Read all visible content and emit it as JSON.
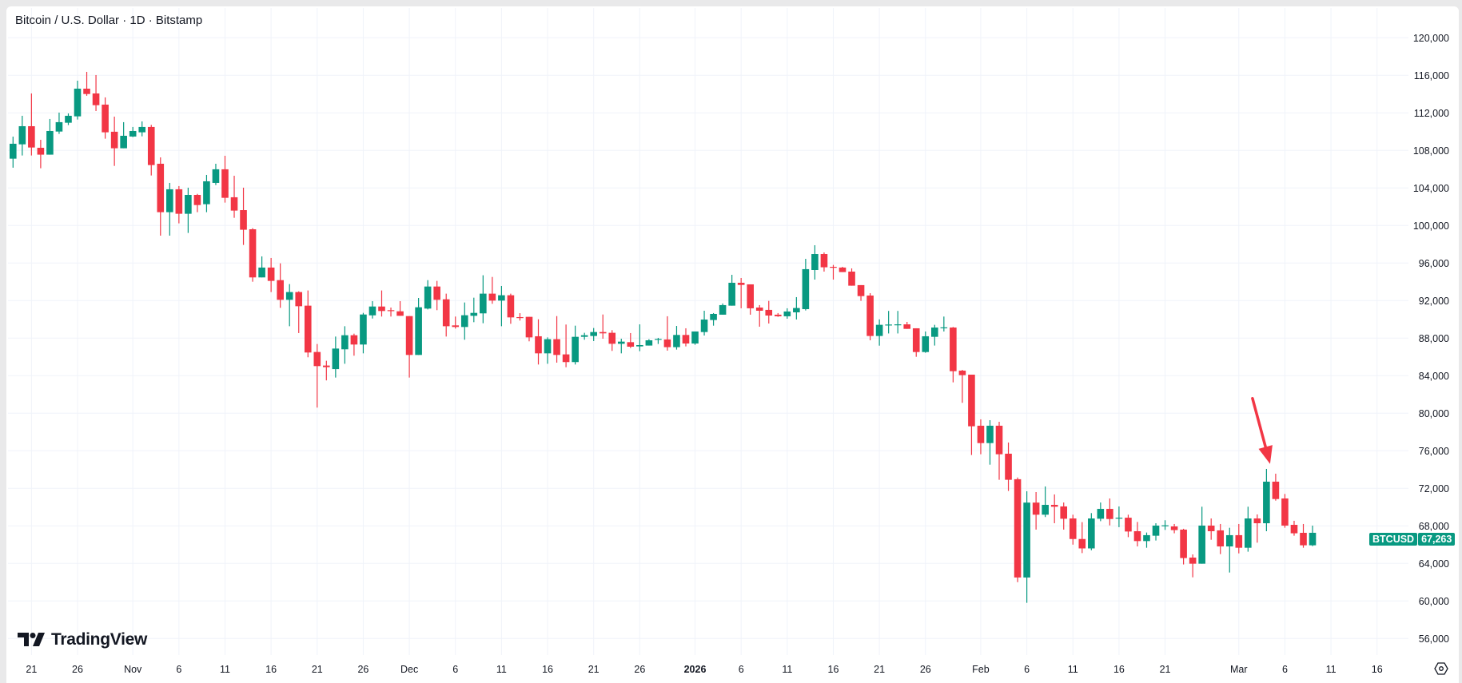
{
  "header": {
    "title": "Bitcoin / U.S. Dollar · 1D · Bitstamp"
  },
  "branding": {
    "logo_text": "TradingView"
  },
  "price_tag": {
    "symbol": "BTCUSD",
    "value": "67,263"
  },
  "colors": {
    "up": "#089981",
    "down": "#F23645",
    "grid": "#f0f3fa",
    "arrow": "#F23645",
    "text": "#131722"
  },
  "icons": {
    "axis_settings": "settings-icon",
    "annotation": "arrow-down-icon"
  },
  "chart_data": {
    "type": "candlestick",
    "title": "Bitcoin / U.S. Dollar · 1D · Bitstamp",
    "interval": "1D",
    "ylim": [
      55000,
      123000
    ],
    "grid": true,
    "y_ticks": [
      {
        "value": 120000,
        "label": "120,000"
      },
      {
        "value": 116000,
        "label": "116,000"
      },
      {
        "value": 112000,
        "label": "112,000"
      },
      {
        "value": 108000,
        "label": "108,000"
      },
      {
        "value": 104000,
        "label": "104,000"
      },
      {
        "value": 100000,
        "label": "100,000"
      },
      {
        "value": 96000,
        "label": "96,000"
      },
      {
        "value": 92000,
        "label": "92,000"
      },
      {
        "value": 88000,
        "label": "88,000"
      },
      {
        "value": 84000,
        "label": "84,000"
      },
      {
        "value": 80000,
        "label": "80,000"
      },
      {
        "value": 76000,
        "label": "76,000"
      },
      {
        "value": 72000,
        "label": "72,000"
      },
      {
        "value": 68000,
        "label": "68,000"
      },
      {
        "value": 64000,
        "label": "64,000"
      },
      {
        "value": 60000,
        "label": "60,000"
      },
      {
        "value": 56000,
        "label": "56,000"
      }
    ],
    "x_ticks": [
      {
        "day": 3,
        "label": "21"
      },
      {
        "day": 8,
        "label": "26"
      },
      {
        "day": 14,
        "label": "Nov"
      },
      {
        "day": 19,
        "label": "6"
      },
      {
        "day": 24,
        "label": "11"
      },
      {
        "day": 29,
        "label": "16"
      },
      {
        "day": 34,
        "label": "21"
      },
      {
        "day": 39,
        "label": "26"
      },
      {
        "day": 44,
        "label": "Dec"
      },
      {
        "day": 49,
        "label": "6"
      },
      {
        "day": 54,
        "label": "11"
      },
      {
        "day": 59,
        "label": "16"
      },
      {
        "day": 64,
        "label": "21"
      },
      {
        "day": 69,
        "label": "26"
      },
      {
        "day": 75,
        "label": "2026",
        "bold": true
      },
      {
        "day": 80,
        "label": "6"
      },
      {
        "day": 85,
        "label": "11"
      },
      {
        "day": 90,
        "label": "16"
      },
      {
        "day": 95,
        "label": "21"
      },
      {
        "day": 100,
        "label": "26"
      },
      {
        "day": 106,
        "label": "Feb"
      },
      {
        "day": 111,
        "label": "6"
      },
      {
        "day": 116,
        "label": "11"
      },
      {
        "day": 121,
        "label": "16"
      },
      {
        "day": 126,
        "label": "21"
      },
      {
        "day": 134,
        "label": "Mar"
      },
      {
        "day": 139,
        "label": "6"
      },
      {
        "day": 144,
        "label": "11"
      },
      {
        "day": 149,
        "label": "16"
      }
    ],
    "annotation": {
      "type": "arrow",
      "points_to_day": 138
    },
    "last_price": 67263,
    "ohlc_fields": [
      "open",
      "high",
      "low",
      "close"
    ],
    "candles": [
      [
        107120,
        109470,
        106160,
        108710
      ],
      [
        108650,
        111690,
        107460,
        110580
      ],
      [
        110580,
        114070,
        107460,
        108310
      ],
      [
        108280,
        109130,
        106100,
        107550
      ],
      [
        107550,
        111350,
        107550,
        110070
      ],
      [
        110010,
        112030,
        109760,
        111010
      ],
      [
        110950,
        111940,
        110700,
        111690
      ],
      [
        111630,
        115430,
        111290,
        114580
      ],
      [
        114580,
        116370,
        113820,
        114010
      ],
      [
        114070,
        116030,
        112200,
        112820
      ],
      [
        112880,
        113650,
        109250,
        109930
      ],
      [
        109990,
        111600,
        106350,
        108230
      ],
      [
        108230,
        111010,
        108230,
        109560
      ],
      [
        109480,
        110500,
        109420,
        110070
      ],
      [
        109930,
        111090,
        109500,
        110500
      ],
      [
        110500,
        110720,
        105330,
        106440
      ],
      [
        106580,
        107260,
        98920,
        101420
      ],
      [
        101420,
        104540,
        98920,
        103860
      ],
      [
        103860,
        104200,
        100230,
        101250
      ],
      [
        101250,
        104030,
        99210,
        103260
      ],
      [
        103260,
        103370,
        101420,
        102180
      ],
      [
        102270,
        105390,
        101420,
        104710
      ],
      [
        104540,
        106580,
        104310,
        105990
      ],
      [
        105990,
        107430,
        102440,
        102950
      ],
      [
        103010,
        105300,
        100820,
        101590
      ],
      [
        101640,
        104030,
        97930,
        99550
      ],
      [
        99600,
        99720,
        94010,
        94470
      ],
      [
        94470,
        96710,
        94470,
        95520
      ],
      [
        95520,
        96540,
        92910,
        94100
      ],
      [
        94180,
        95970,
        91230,
        92085
      ],
      [
        92085,
        93760,
        89270,
        92910
      ],
      [
        92910,
        92990,
        88540,
        91400
      ],
      [
        91460,
        93080,
        85960,
        86470
      ],
      [
        86525,
        87375,
        80600,
        85020
      ],
      [
        85080,
        85590,
        83500,
        84910
      ],
      [
        84700,
        88170,
        83800,
        86890
      ],
      [
        86810,
        89270,
        85270,
        88310
      ],
      [
        88310,
        88480,
        86130,
        87320
      ],
      [
        87320,
        90690,
        86380,
        90520
      ],
      [
        90430,
        91940,
        90090,
        91370
      ],
      [
        91370,
        93080,
        90300,
        90890
      ],
      [
        90980,
        91260,
        90300,
        90920
      ],
      [
        90860,
        91940,
        90380,
        90380
      ],
      [
        90350,
        90350,
        83800,
        86210
      ],
      [
        86210,
        92280,
        86210,
        91290
      ],
      [
        91150,
        94180,
        91060,
        93500
      ],
      [
        93500,
        94100,
        90980,
        92085
      ],
      [
        92140,
        92740,
        88170,
        89270
      ],
      [
        89360,
        90300,
        89020,
        89190
      ],
      [
        89190,
        91800,
        87830,
        90440
      ],
      [
        90380,
        92310,
        89700,
        90690
      ],
      [
        90640,
        94700,
        89590,
        92740
      ],
      [
        92740,
        94520,
        91660,
        92000
      ],
      [
        92000,
        93560,
        89270,
        92570
      ],
      [
        92570,
        92740,
        89530,
        90210
      ],
      [
        90240,
        90660,
        89870,
        90200
      ],
      [
        90270,
        90270,
        87660,
        88080
      ],
      [
        88200,
        90010,
        85190,
        86380
      ],
      [
        86380,
        88080,
        85270,
        87890
      ],
      [
        87890,
        90350,
        85390,
        86210
      ],
      [
        86270,
        89450,
        84900,
        85450
      ],
      [
        85450,
        89330,
        85190,
        88140
      ],
      [
        88140,
        88570,
        87830,
        88310
      ],
      [
        88230,
        89080,
        87690,
        88650
      ],
      [
        88650,
        90520,
        87940,
        88510
      ],
      [
        88570,
        88850,
        86640,
        87400
      ],
      [
        87400,
        87940,
        86380,
        87630
      ],
      [
        87570,
        88540,
        86950,
        87090
      ],
      [
        87120,
        89470,
        86610,
        87260
      ],
      [
        87210,
        87890,
        87210,
        87770
      ],
      [
        87860,
        88030,
        87380,
        87920
      ],
      [
        87860,
        90330,
        86670,
        87040
      ],
      [
        87040,
        89300,
        86780,
        88340
      ],
      [
        88340,
        89050,
        87120,
        87430
      ],
      [
        87430,
        88710,
        87290,
        88710
      ],
      [
        88650,
        90920,
        88280,
        89980
      ],
      [
        89930,
        90670,
        89330,
        90580
      ],
      [
        90500,
        91690,
        90500,
        91520
      ],
      [
        91460,
        94750,
        91460,
        93900
      ],
      [
        93900,
        94410,
        91180,
        93670
      ],
      [
        93730,
        93730,
        90500,
        91180
      ],
      [
        91260,
        91520,
        89220,
        90920
      ],
      [
        91010,
        91970,
        89560,
        90410
      ],
      [
        90500,
        90670,
        90270,
        90330
      ],
      [
        90330,
        91180,
        90070,
        90840
      ],
      [
        90750,
        92370,
        89990,
        91210
      ],
      [
        91090,
        96450,
        90950,
        95350
      ],
      [
        95260,
        97900,
        94240,
        96960
      ],
      [
        96960,
        97130,
        95090,
        95550
      ],
      [
        95600,
        95800,
        94240,
        95520
      ],
      [
        95520,
        95600,
        95040,
        95040
      ],
      [
        95090,
        95430,
        93590,
        93590
      ],
      [
        93650,
        93650,
        91970,
        92480
      ],
      [
        92540,
        92790,
        87770,
        88230
      ],
      [
        88230,
        90000,
        87200,
        89420
      ],
      [
        89400,
        90900,
        88500,
        89450
      ],
      [
        89430,
        90900,
        88500,
        89470
      ],
      [
        89470,
        89730,
        88990,
        88990
      ],
      [
        89050,
        89050,
        86010,
        86520
      ],
      [
        86520,
        88710,
        86440,
        88200
      ],
      [
        88140,
        89420,
        87210,
        89130
      ],
      [
        89100,
        90300,
        88710,
        89150
      ],
      [
        89130,
        89190,
        83290,
        84480
      ],
      [
        84540,
        84620,
        81110,
        84060
      ],
      [
        84110,
        84110,
        75550,
        78610
      ],
      [
        78670,
        79350,
        75630,
        76820
      ],
      [
        76820,
        79260,
        74520,
        78670
      ],
      [
        78670,
        79090,
        72910,
        75630
      ],
      [
        75690,
        76880,
        71720,
        72910
      ],
      [
        72970,
        73150,
        62000,
        62500
      ],
      [
        62500,
        71690,
        59800,
        70480
      ],
      [
        70480,
        71600,
        67600,
        69190
      ],
      [
        69190,
        72200,
        68940,
        70240
      ],
      [
        70240,
        71350,
        68280,
        70040
      ],
      [
        70070,
        70490,
        67600,
        68760
      ],
      [
        68790,
        69190,
        66000,
        66600
      ],
      [
        66600,
        68400,
        65100,
        65600
      ],
      [
        65600,
        69360,
        65400,
        68790
      ],
      [
        68760,
        70490,
        68500,
        69810
      ],
      [
        69810,
        70920,
        68050,
        68730
      ],
      [
        68820,
        70070,
        67860,
        68870
      ],
      [
        68870,
        69190,
        66800,
        67400
      ],
      [
        67430,
        68420,
        65810,
        66380
      ],
      [
        66380,
        67290,
        65670,
        67010
      ],
      [
        66950,
        68280,
        66440,
        68030
      ],
      [
        68030,
        68600,
        67570,
        68060
      ],
      [
        67940,
        68200,
        67210,
        67550
      ],
      [
        67600,
        67690,
        63890,
        64570
      ],
      [
        64620,
        64960,
        62520,
        63970
      ],
      [
        63970,
        70040,
        63970,
        68030
      ],
      [
        68030,
        68790,
        66520,
        67430
      ],
      [
        67520,
        68200,
        64990,
        65810
      ],
      [
        65810,
        67800,
        63030,
        67010
      ],
      [
        67010,
        68200,
        65070,
        65670
      ],
      [
        65670,
        70040,
        65250,
        68790
      ],
      [
        68790,
        69220,
        66210,
        68280
      ],
      [
        68280,
        74070,
        67430,
        72710
      ],
      [
        72710,
        73560,
        70690,
        70860
      ],
      [
        70920,
        71400,
        67800,
        68030
      ],
      [
        68110,
        68540,
        66950,
        67210
      ],
      [
        67260,
        68200,
        65670,
        65930
      ],
      [
        65930,
        68030,
        65840,
        67263
      ]
    ]
  }
}
